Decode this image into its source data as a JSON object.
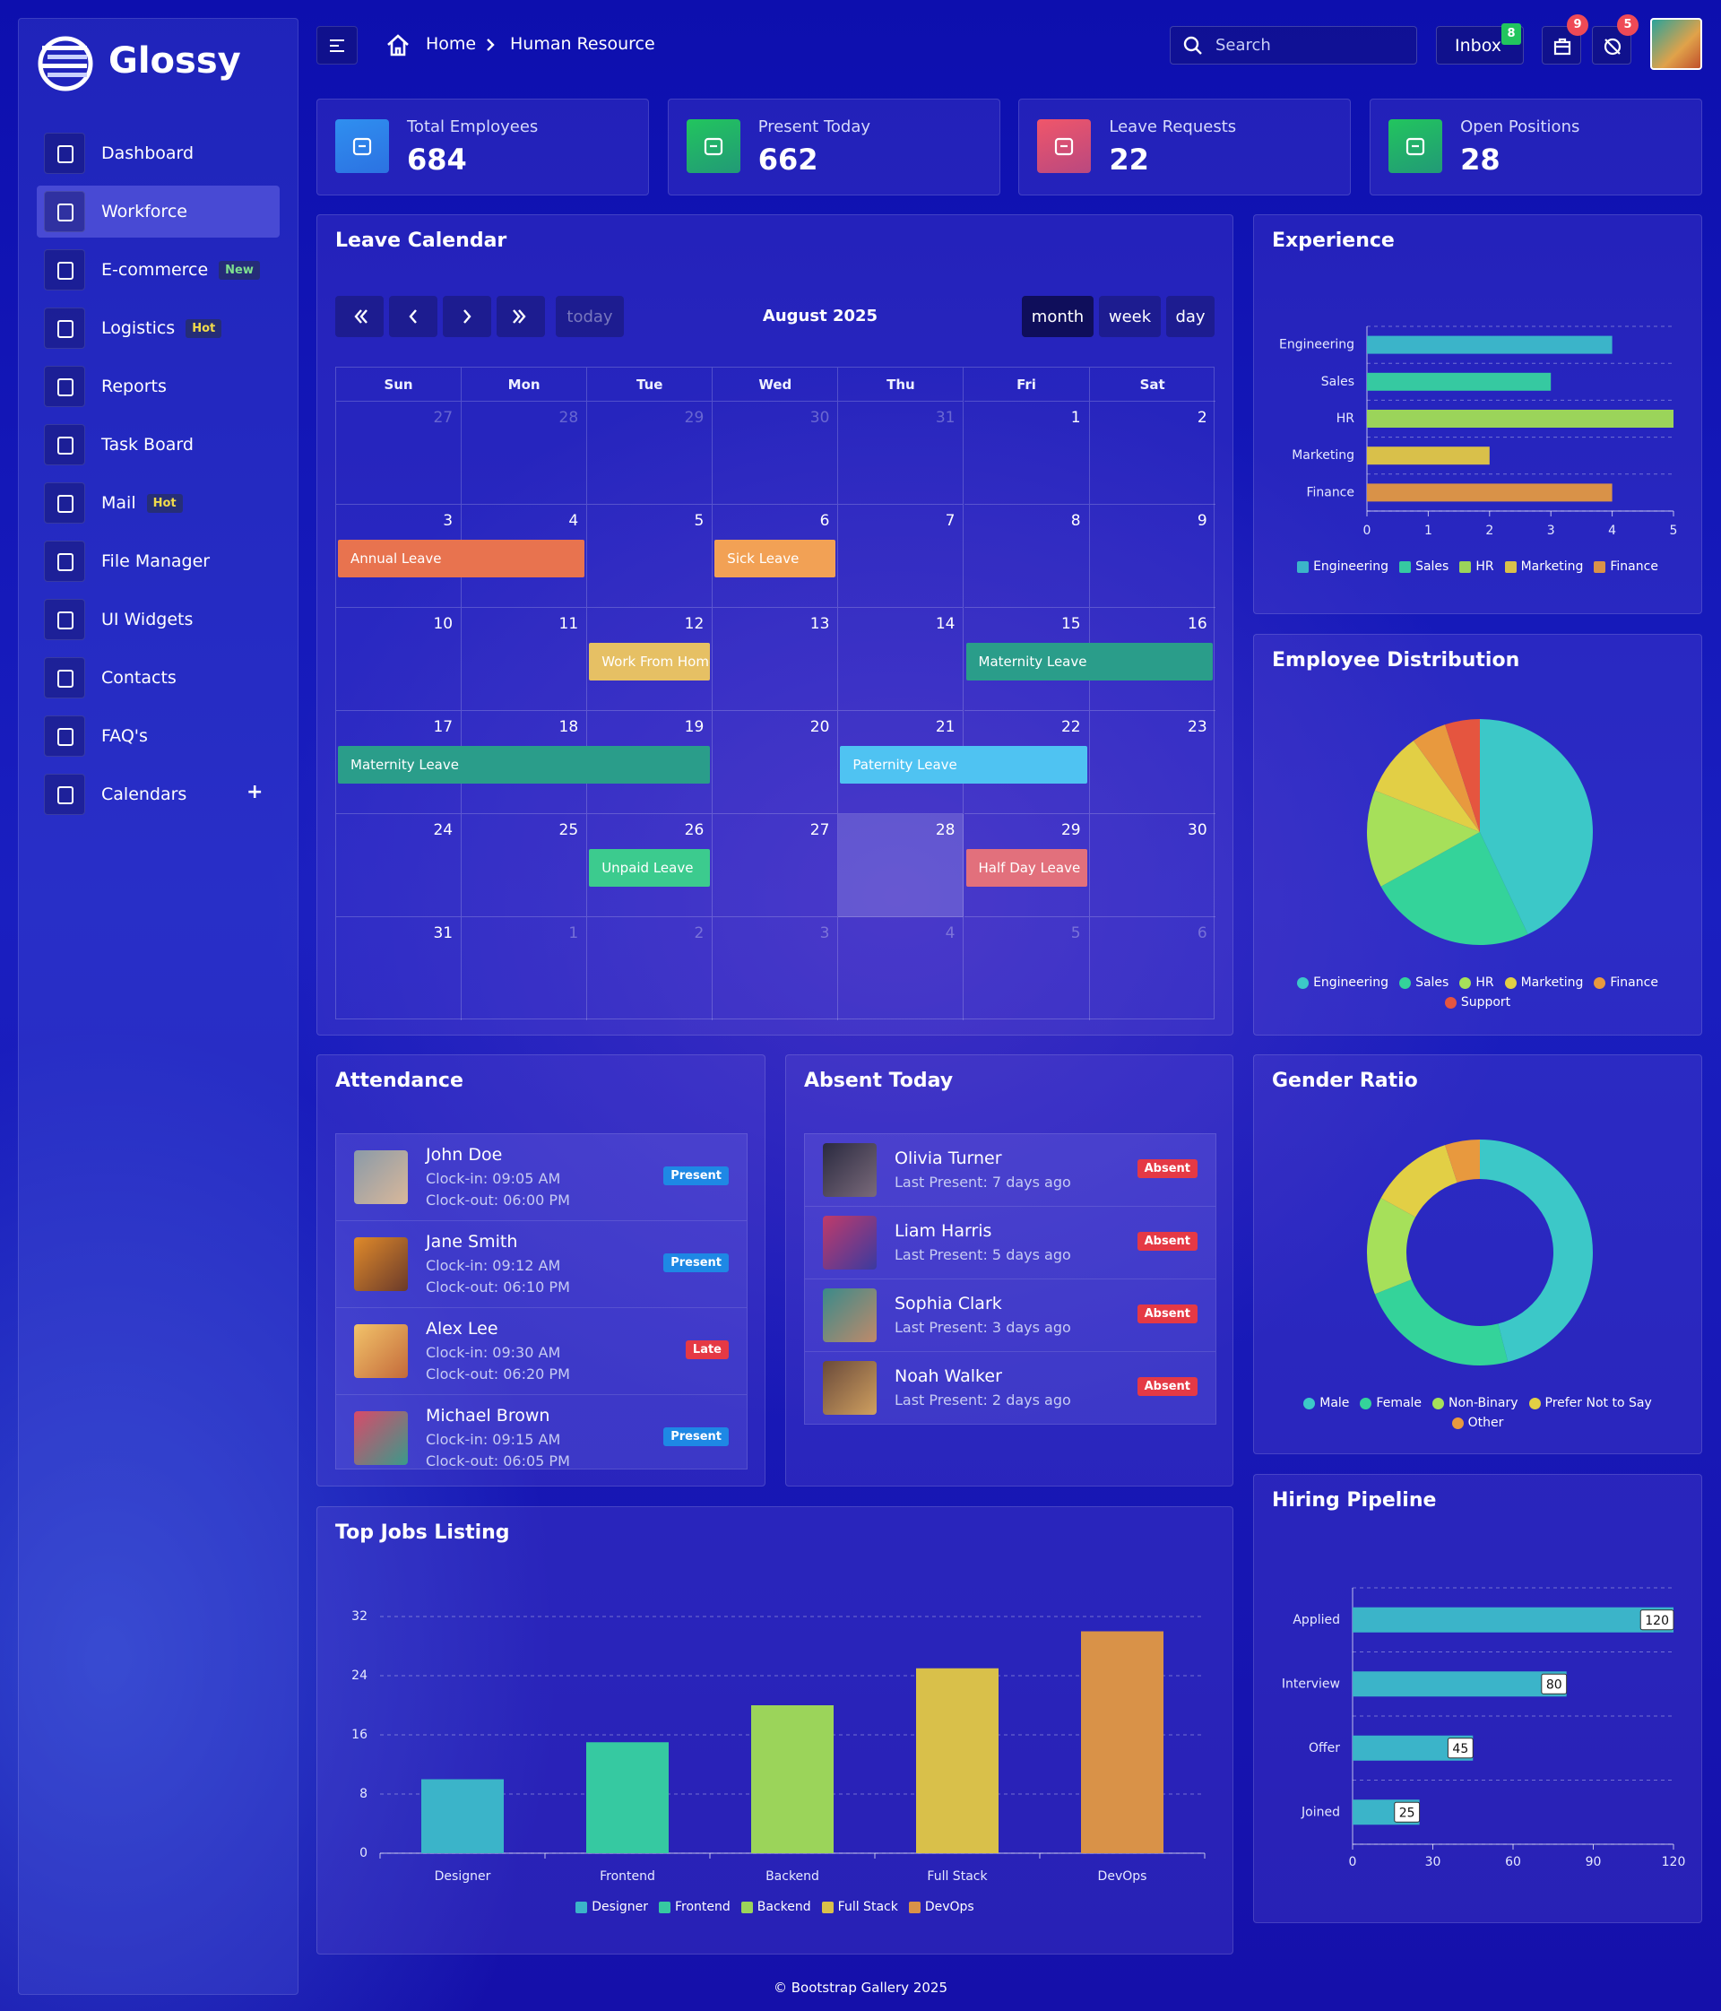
{
  "brand": "Glossy",
  "menu": [
    {
      "label": "Dashboard"
    },
    {
      "label": "Workforce",
      "active": true
    },
    {
      "label": "E-commerce",
      "badge": "New",
      "badge_color": "#7ee08f"
    },
    {
      "label": "Logistics",
      "badge": "Hot",
      "badge_color": "#f2dc4a"
    },
    {
      "label": "Reports"
    },
    {
      "label": "Task Board"
    },
    {
      "label": "Mail",
      "badge": "Hot",
      "badge_color": "#f2dc4a"
    },
    {
      "label": "File Manager"
    },
    {
      "label": "UI Widgets"
    },
    {
      "label": "Contacts"
    },
    {
      "label": "FAQ's"
    },
    {
      "label": "Calendars",
      "action": "+"
    }
  ],
  "header": {
    "breadcrumb": [
      "Home",
      "Human Resource"
    ],
    "search_placeholder": "Search",
    "inbox": "Inbox",
    "inbox_count": 8,
    "notifications": [
      9,
      5
    ]
  },
  "stats": [
    {
      "label": "Total Employees",
      "value": 684,
      "color": "#2f8ff0"
    },
    {
      "label": "Present Today",
      "value": 662,
      "color": "#22c55e"
    },
    {
      "label": "Leave Requests",
      "value": 22,
      "color": "#f0566a"
    },
    {
      "label": "Open Positions",
      "value": 28,
      "color": "#22c55e"
    }
  ],
  "calendar": {
    "title": "Leave Calendar",
    "today_button": "today",
    "month": "August 2025",
    "views": [
      "month",
      "week",
      "day"
    ],
    "active_view": 0,
    "weekdays": [
      "Sun",
      "Mon",
      "Tue",
      "Wed",
      "Thu",
      "Fri",
      "Sat"
    ],
    "weeks": [
      [
        27,
        28,
        29,
        30,
        31,
        1,
        2
      ],
      [
        3,
        4,
        5,
        6,
        7,
        8,
        9
      ],
      [
        10,
        11,
        12,
        13,
        14,
        15,
        16
      ],
      [
        17,
        18,
        19,
        20,
        21,
        22,
        23
      ],
      [
        24,
        25,
        26,
        27,
        28,
        29,
        30
      ],
      [
        31,
        1,
        2,
        3,
        4,
        5,
        6
      ]
    ],
    "highlight_day": 28,
    "events": [
      {
        "title": "Annual Leave",
        "start": 3,
        "end": 4,
        "color": "#e8734f"
      },
      {
        "title": "Sick Leave",
        "start": 6,
        "end": 6,
        "color": "#f2a155"
      },
      {
        "title": "Work From Home",
        "start": 12,
        "end": 12,
        "color": "#e6c064"
      },
      {
        "title": "Maternity Leave",
        "start": 15,
        "end": 19,
        "color": "#2a9d8a"
      },
      {
        "title": "Paternity Leave",
        "start": 21,
        "end": 22,
        "color": "#4fc3f2"
      },
      {
        "title": "Unpaid Leave",
        "start": 26,
        "end": 26,
        "color": "#3ccb8e"
      },
      {
        "title": "Half Day Leave",
        "start": 29,
        "end": 29,
        "color": "#e2707c"
      }
    ]
  },
  "attendance": {
    "title": "Attendance",
    "items": [
      {
        "name": "John Doe",
        "clock_in": "Clock-in: 09:05 AM",
        "clock_out": "Clock-out: 06:00 PM",
        "status": "Present",
        "status_color": "#1e88e5"
      },
      {
        "name": "Jane Smith",
        "clock_in": "Clock-in: 09:12 AM",
        "clock_out": "Clock-out: 06:10 PM",
        "status": "Present",
        "status_color": "#1e88e5"
      },
      {
        "name": "Alex Lee",
        "clock_in": "Clock-in: 09:30 AM",
        "clock_out": "Clock-out: 06:20 PM",
        "status": "Late",
        "status_color": "#e53945"
      },
      {
        "name": "Michael Brown",
        "clock_in": "Clock-in: 09:15 AM",
        "clock_out": "Clock-out: 06:05 PM",
        "status": "Present",
        "status_color": "#1e88e5"
      }
    ]
  },
  "absent": {
    "title": "Absent Today",
    "items": [
      {
        "name": "Olivia Turner",
        "last_present": "Last Present: 7 days ago",
        "status": "Absent"
      },
      {
        "name": "Liam Harris",
        "last_present": "Last Present: 5 days ago",
        "status": "Absent"
      },
      {
        "name": "Sophia Clark",
        "last_present": "Last Present: 3 days ago",
        "status": "Absent"
      },
      {
        "name": "Noah Walker",
        "last_present": "Last Present: 2 days ago",
        "status": "Absent"
      }
    ]
  },
  "chart_data": [
    {
      "type": "hbar",
      "title": "Experience",
      "categories": [
        "Engineering",
        "Sales",
        "HR",
        "Marketing",
        "Finance"
      ],
      "values": [
        4,
        3,
        5,
        2,
        4
      ],
      "colors": [
        "#3bb4c9",
        "#36c9a1",
        "#9bd45a",
        "#d9c04a",
        "#d99248"
      ],
      "xlim": [
        0,
        5
      ],
      "xticks": [
        0,
        1,
        2,
        3,
        4,
        5
      ],
      "legend": true
    },
    {
      "type": "pie",
      "title": "Employee Distribution",
      "categories": [
        "Engineering",
        "Sales",
        "HR",
        "Marketing",
        "Finance",
        "Support"
      ],
      "values": [
        43,
        24,
        14,
        9,
        5,
        5
      ],
      "colors": [
        "#3cc8c8",
        "#34d39a",
        "#a6e05a",
        "#e2cf45",
        "#e8993e",
        "#e5553f"
      ],
      "legend": true
    },
    {
      "type": "pie",
      "donut": true,
      "title": "Gender Ratio",
      "categories": [
        "Male",
        "Female",
        "Non-Binary",
        "Prefer Not to Say",
        "Other"
      ],
      "values": [
        46,
        23,
        14,
        12,
        5
      ],
      "colors": [
        "#3cc8c8",
        "#34d39a",
        "#a6e05a",
        "#e2cf45",
        "#e8993e"
      ],
      "legend": true
    },
    {
      "type": "bar",
      "title": "Top Jobs Listing",
      "categories": [
        "Designer",
        "Frontend",
        "Backend",
        "Full Stack",
        "DevOps"
      ],
      "values": [
        10,
        15,
        20,
        25,
        30
      ],
      "colors": [
        "#3bb4c9",
        "#36c9a1",
        "#9bd45a",
        "#d9c04a",
        "#d99248"
      ],
      "ylim": [
        0,
        32
      ],
      "yticks": [
        0,
        8,
        16,
        24,
        32
      ],
      "grid": true,
      "legend": true
    },
    {
      "type": "hbar",
      "title": "Hiring Pipeline",
      "categories": [
        "Applied",
        "Interview",
        "Offer",
        "Joined"
      ],
      "values": [
        120,
        80,
        45,
        25
      ],
      "color": "#3bb4c9",
      "xlim": [
        0,
        120
      ],
      "xticks": [
        0,
        30,
        60,
        90,
        120
      ],
      "data_labels": true
    }
  ],
  "footer": "© Bootstrap Gallery 2025"
}
